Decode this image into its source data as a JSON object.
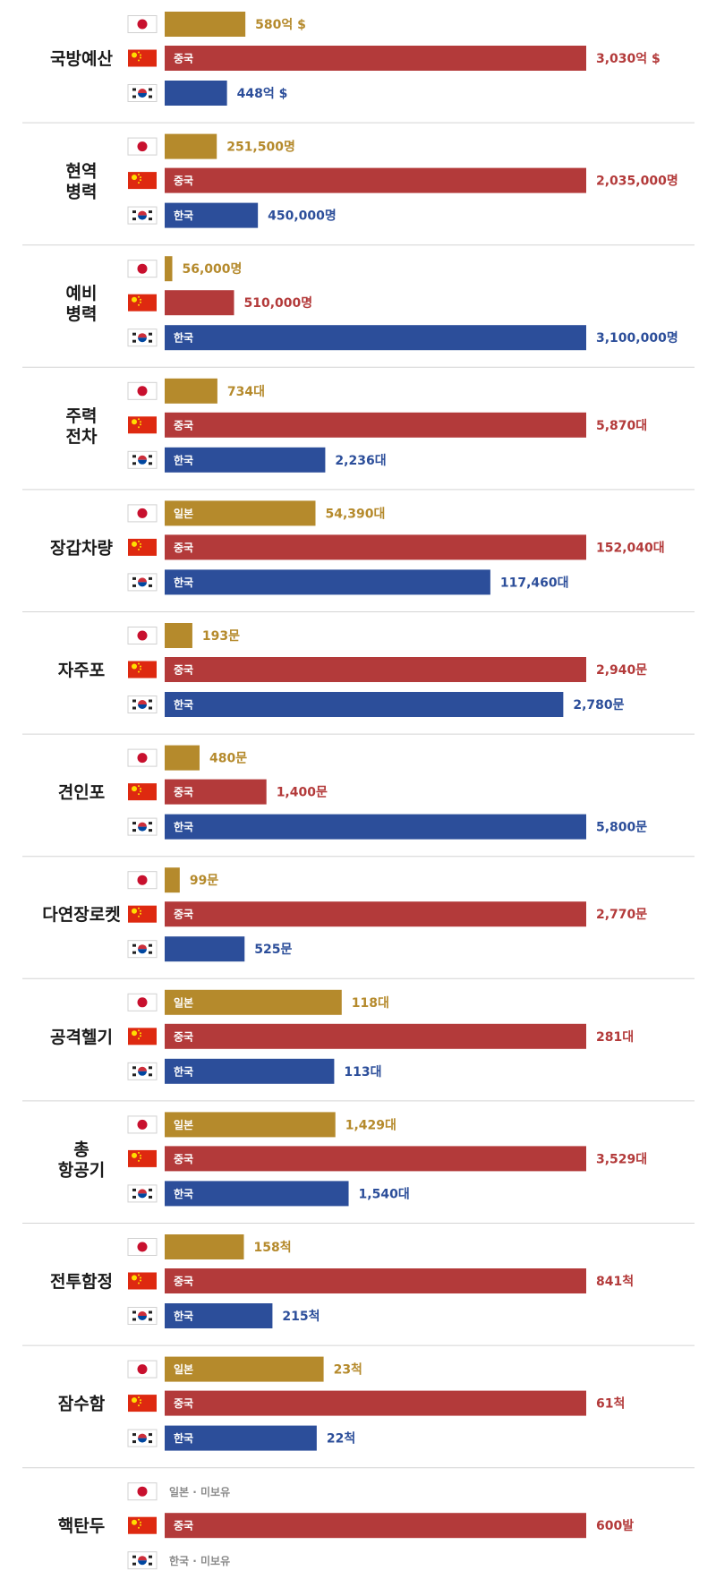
{
  "colors": {
    "japan": "#b58a2c",
    "china": "#b33a3a",
    "korea": "#2c4e9a",
    "divider": "#d4d4d4",
    "none_text": "#8a8a8a"
  },
  "countries": [
    {
      "key": "japan",
      "flag": "japan-flag-icon",
      "label": "일본"
    },
    {
      "key": "china",
      "flag": "china-flag-icon",
      "label": "중국"
    },
    {
      "key": "korea",
      "flag": "korea-flag-icon",
      "label": "한국"
    }
  ],
  "chart_data": {
    "type": "bar",
    "orientation": "horizontal",
    "groups": [
      {
        "title": [
          "국방예산"
        ],
        "bars": [
          {
            "country": "japan",
            "value": 580,
            "text": "580억 $",
            "inlabel": ""
          },
          {
            "country": "china",
            "value": 3030,
            "text": "3,030억 $",
            "inlabel": "중국"
          },
          {
            "country": "korea",
            "value": 448,
            "text": "448억 $",
            "inlabel": ""
          }
        ]
      },
      {
        "title": [
          "현역",
          "병력"
        ],
        "bars": [
          {
            "country": "japan",
            "value": 251500,
            "text": "251,500명",
            "inlabel": ""
          },
          {
            "country": "china",
            "value": 2035000,
            "text": "2,035,000명",
            "inlabel": "중국"
          },
          {
            "country": "korea",
            "value": 450000,
            "text": "450,000명",
            "inlabel": "한국"
          }
        ]
      },
      {
        "title": [
          "예비",
          "병력"
        ],
        "bars": [
          {
            "country": "japan",
            "value": 56000,
            "text": "56,000명",
            "inlabel": ""
          },
          {
            "country": "china",
            "value": 510000,
            "text": "510,000명",
            "inlabel": ""
          },
          {
            "country": "korea",
            "value": 3100000,
            "text": "3,100,000명",
            "inlabel": "한국"
          }
        ]
      },
      {
        "title": [
          "주력",
          "전차"
        ],
        "bars": [
          {
            "country": "japan",
            "value": 734,
            "text": "734대",
            "inlabel": ""
          },
          {
            "country": "china",
            "value": 5870,
            "text": "5,870대",
            "inlabel": "중국"
          },
          {
            "country": "korea",
            "value": 2236,
            "text": "2,236대",
            "inlabel": "한국"
          }
        ]
      },
      {
        "title": [
          "장갑차량"
        ],
        "bars": [
          {
            "country": "japan",
            "value": 54390,
            "text": "54,390대",
            "inlabel": "일본"
          },
          {
            "country": "china",
            "value": 152040,
            "text": "152,040대",
            "inlabel": "중국"
          },
          {
            "country": "korea",
            "value": 117460,
            "text": "117,460대",
            "inlabel": "한국"
          }
        ]
      },
      {
        "title": [
          "자주포"
        ],
        "bars": [
          {
            "country": "japan",
            "value": 193,
            "text": "193문",
            "inlabel": ""
          },
          {
            "country": "china",
            "value": 2940,
            "text": "2,940문",
            "inlabel": "중국"
          },
          {
            "country": "korea",
            "value": 2780,
            "text": "2,780문",
            "inlabel": "한국"
          }
        ]
      },
      {
        "title": [
          "견인포"
        ],
        "bars": [
          {
            "country": "japan",
            "value": 480,
            "text": "480문",
            "inlabel": ""
          },
          {
            "country": "china",
            "value": 1400,
            "text": "1,400문",
            "inlabel": "중국"
          },
          {
            "country": "korea",
            "value": 5800,
            "text": "5,800문",
            "inlabel": "한국"
          }
        ]
      },
      {
        "title": [
          "다연장로켓"
        ],
        "bars": [
          {
            "country": "japan",
            "value": 99,
            "text": "99문",
            "inlabel": ""
          },
          {
            "country": "china",
            "value": 2770,
            "text": "2,770문",
            "inlabel": "중국"
          },
          {
            "country": "korea",
            "value": 525,
            "text": "525문",
            "inlabel": ""
          }
        ]
      },
      {
        "title": [
          "공격헬기"
        ],
        "bars": [
          {
            "country": "japan",
            "value": 118,
            "text": "118대",
            "inlabel": "일본"
          },
          {
            "country": "china",
            "value": 281,
            "text": "281대",
            "inlabel": "중국"
          },
          {
            "country": "korea",
            "value": 113,
            "text": "113대",
            "inlabel": "한국"
          }
        ]
      },
      {
        "title": [
          "총",
          "항공기"
        ],
        "bars": [
          {
            "country": "japan",
            "value": 1429,
            "text": "1,429대",
            "inlabel": "일본"
          },
          {
            "country": "china",
            "value": 3529,
            "text": "3,529대",
            "inlabel": "중국"
          },
          {
            "country": "korea",
            "value": 1540,
            "text": "1,540대",
            "inlabel": "한국"
          }
        ]
      },
      {
        "title": [
          "전투함정"
        ],
        "bars": [
          {
            "country": "japan",
            "value": 158,
            "text": "158척",
            "inlabel": ""
          },
          {
            "country": "china",
            "value": 841,
            "text": "841척",
            "inlabel": "중국"
          },
          {
            "country": "korea",
            "value": 215,
            "text": "215척",
            "inlabel": "한국"
          }
        ]
      },
      {
        "title": [
          "잠수함"
        ],
        "bars": [
          {
            "country": "japan",
            "value": 23,
            "text": "23척",
            "inlabel": "일본"
          },
          {
            "country": "china",
            "value": 61,
            "text": "61척",
            "inlabel": "중국"
          },
          {
            "country": "korea",
            "value": 22,
            "text": "22척",
            "inlabel": "한국"
          }
        ]
      },
      {
        "title": [
          "핵탄두"
        ],
        "bars": [
          {
            "country": "japan",
            "value": null,
            "text": "일본 · 미보유",
            "inlabel": ""
          },
          {
            "country": "china",
            "value": 600,
            "text": "600발",
            "inlabel": "중국"
          },
          {
            "country": "korea",
            "value": null,
            "text": "한국 · 미보유",
            "inlabel": ""
          }
        ]
      }
    ]
  }
}
